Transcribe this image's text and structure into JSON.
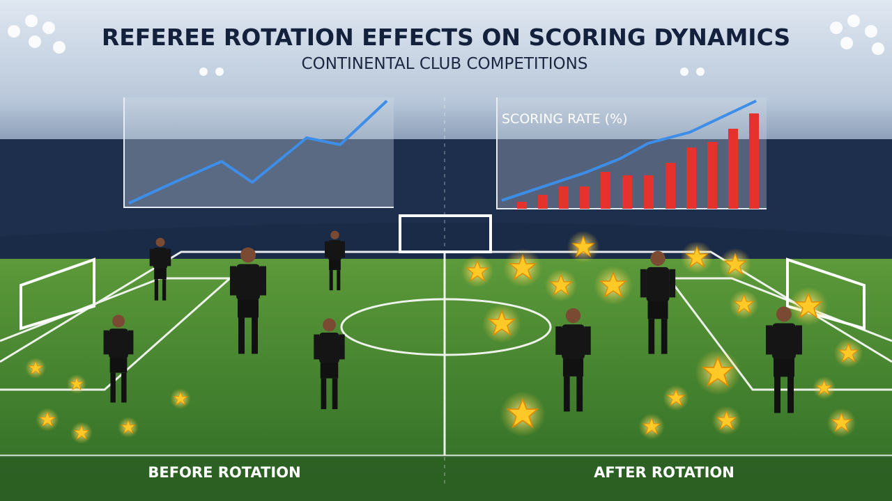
{
  "header": {
    "title": "REFEREE ROTATION EFFECTS ON SCORING DYNAMICS",
    "subtitle": "CONTINENTAL CLUB COMPETITIONS"
  },
  "right_panel": {
    "label": "SCORING RATE (%)"
  },
  "footer": {
    "left": "BEFORE ROTATION",
    "right": "AFTER ROTATION"
  }
}
